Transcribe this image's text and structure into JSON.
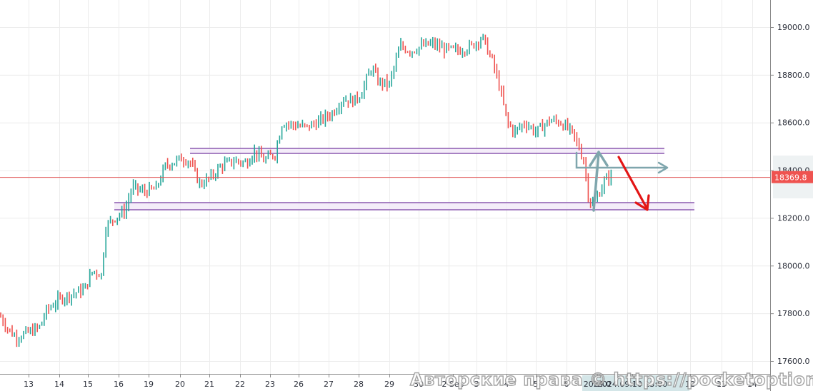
{
  "chart_data": {
    "type": "candlestick",
    "title": "",
    "xlabel": "",
    "ylabel": "",
    "ylim": [
      17560,
      19110
    ],
    "grid": true,
    "y_ticks": [
      19000.0,
      18800.0,
      18600.0,
      18400.0,
      18200.0,
      18000.0,
      17800.0,
      17600.0
    ],
    "y_tick_labels": [
      "19000.0",
      "18800.0",
      "18600.0",
      "18400.0",
      "18200.0",
      "18000.0",
      "17800.0",
      "17600.0"
    ],
    "x_tick_labels": [
      "13",
      "14",
      "15",
      "16",
      "19",
      "20",
      "21",
      "22",
      "23",
      "26",
      "27",
      "28",
      "29",
      "30",
      "2 Sep",
      "3",
      "4",
      "5",
      "6",
      "2024.0",
      "2024.09.10 13:00",
      "12",
      "13",
      "14"
    ],
    "current_price": 18369.8,
    "current_price_label": "18369.8",
    "approx_close_path": [
      {
        "x": "13",
        "y": 17780
      },
      {
        "x": "13",
        "y": 17700
      },
      {
        "x": "14",
        "y": 17760
      },
      {
        "x": "14",
        "y": 17850
      },
      {
        "x": "15",
        "y": 17880
      },
      {
        "x": "15",
        "y": 17990
      },
      {
        "x": "16",
        "y": 18180
      },
      {
        "x": "16",
        "y": 18260
      },
      {
        "x": "19",
        "y": 18340
      },
      {
        "x": "20",
        "y": 18450
      },
      {
        "x": "21",
        "y": 18350
      },
      {
        "x": "22",
        "y": 18430
      },
      {
        "x": "23",
        "y": 18460
      },
      {
        "x": "26",
        "y": 18600
      },
      {
        "x": "27",
        "y": 18620
      },
      {
        "x": "28",
        "y": 18760
      },
      {
        "x": "29",
        "y": 18760
      },
      {
        "x": "30",
        "y": 18900
      },
      {
        "x": "2 Sep",
        "y": 18930
      },
      {
        "x": "3",
        "y": 18950
      },
      {
        "x": "4",
        "y": 18560
      },
      {
        "x": "5",
        "y": 18600
      },
      {
        "x": "6",
        "y": 18540
      },
      {
        "x": "2024.0",
        "y": 18260
      },
      {
        "x": "2024.09.10 13:00",
        "y": 18369.8
      }
    ],
    "annotations": [
      {
        "type": "horizontal_band",
        "label": "resistance-zone",
        "y_top": 18490,
        "y_bottom": 18470,
        "color": "#9c6fc1"
      },
      {
        "type": "horizontal_band",
        "label": "support-zone",
        "y_top": 18265,
        "y_bottom": 18235,
        "color": "#9c6fc1"
      },
      {
        "type": "horizontal_line",
        "label": "current-price-line",
        "y": 18369.8,
        "color": "#e05555"
      },
      {
        "type": "arrow",
        "label": "up-arrow",
        "color": "#7fa6ad"
      },
      {
        "type": "arrow",
        "label": "right-arrow",
        "color": "#7fa6ad"
      },
      {
        "type": "arrow",
        "label": "down-forecast-arrow",
        "color": "#e31515"
      }
    ]
  },
  "colors": {
    "up_candle": "#26a69a",
    "down_candle": "#ef5350",
    "grid": "#ececec",
    "axis": "#8a8a8a",
    "price_line": "#e05555",
    "price_badge_bg": "#ef5350",
    "band_stroke": "#8b5ab0",
    "band_fill": "#f1e8f8",
    "teal_arrow": "#7fa6ad",
    "red_arrow": "#e31515"
  },
  "watermark": {
    "text": "Авторские права © https://pocketoption.ru"
  }
}
